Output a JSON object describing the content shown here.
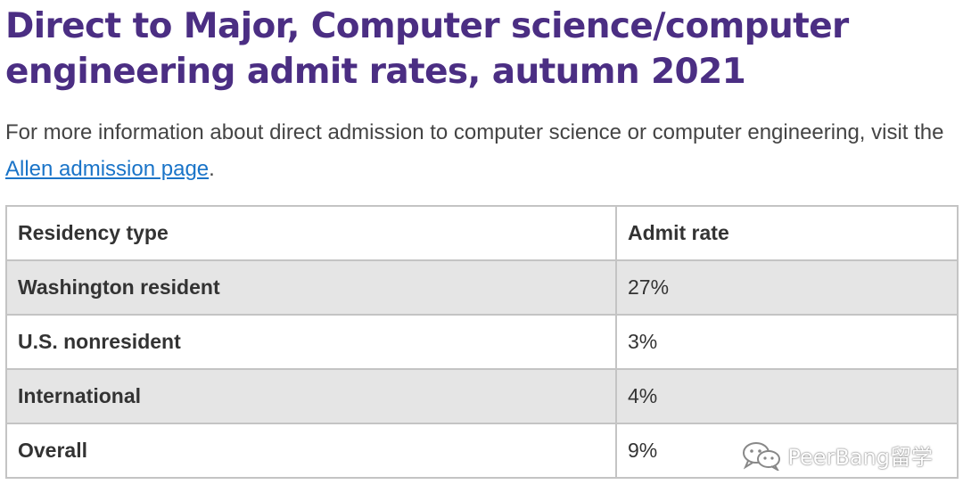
{
  "title": "Direct to Major, Computer science/computer engineering admit rates, autumn 2021",
  "intro": {
    "before": "For more information about direct admission to computer science or computer engineering, visit the ",
    "link": "Allen admission page",
    "after": "."
  },
  "table": {
    "headers": [
      "Residency type",
      "Admit rate"
    ],
    "rows": [
      {
        "residency": "Washington resident",
        "rate": "27%"
      },
      {
        "residency": "U.S. nonresident",
        "rate": "3%"
      },
      {
        "residency": "International",
        "rate": "4%"
      },
      {
        "residency": "Overall",
        "rate": "9%"
      }
    ]
  },
  "watermark": {
    "text": "PeerBang留学",
    "icon": "wechat-icon"
  },
  "colors": {
    "title": "#4b2e83",
    "link": "#1a74c8",
    "row_shade": "#e5e5e5",
    "border": "#c4c4c4"
  }
}
